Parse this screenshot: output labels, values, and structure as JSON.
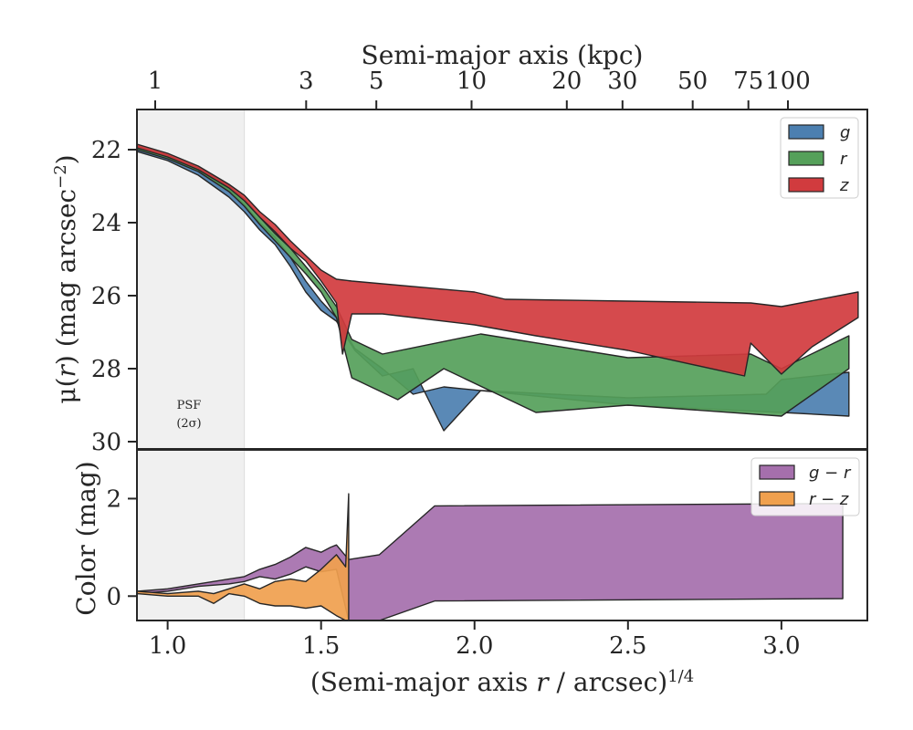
{
  "chart_data": [
    {
      "type": "area",
      "panel": "surface-brightness",
      "top_axis": {
        "label": "Semi-major axis (kpc)",
        "ticks": [
          1,
          3,
          5,
          10,
          20,
          30,
          50,
          75,
          100
        ],
        "tick_labels": [
          "1",
          "3",
          "5",
          "10",
          "20",
          "30",
          "50",
          "75",
          "100"
        ]
      },
      "ylabel": "μ(r) (mag arcsec⁻²)",
      "ylim": [
        30.2,
        20.9
      ],
      "yticks": [
        22,
        24,
        26,
        28,
        30
      ],
      "ytick_labels": [
        "22",
        "24",
        "26",
        "28",
        "30"
      ],
      "y_inverted": true,
      "xlim": [
        0.9,
        3.28
      ],
      "psf_region": {
        "x": [
          0.9,
          1.25
        ],
        "label": "PSF",
        "sublabel": "(2σ)"
      },
      "legend": {
        "placement": "top-right",
        "entries": [
          "g",
          "r",
          "z"
        ]
      },
      "series": [
        {
          "name": "g",
          "color": "#4c7fb0",
          "upper": [
            [
              0.9,
              21.95
            ],
            [
              1.0,
              22.2
            ],
            [
              1.1,
              22.55
            ],
            [
              1.2,
              23.1
            ],
            [
              1.25,
              23.5
            ],
            [
              1.3,
              24.0
            ],
            [
              1.35,
              24.4
            ],
            [
              1.4,
              24.95
            ],
            [
              1.45,
              25.6
            ],
            [
              1.5,
              26.15
            ],
            [
              1.55,
              26.6
            ],
            [
              1.61,
              27.45
            ],
            [
              1.7,
              28.0
            ],
            [
              1.8,
              28.7
            ],
            [
              1.9,
              28.5
            ],
            [
              2.5,
              29.0
            ],
            [
              3.0,
              29.2
            ],
            [
              3.22,
              29.3
            ]
          ],
          "lower": [
            [
              0.9,
              22.05
            ],
            [
              1.0,
              22.3
            ],
            [
              1.1,
              22.7
            ],
            [
              1.2,
              23.3
            ],
            [
              1.25,
              23.7
            ],
            [
              1.3,
              24.2
            ],
            [
              1.35,
              24.6
            ],
            [
              1.4,
              25.2
            ],
            [
              1.45,
              25.9
            ],
            [
              1.5,
              26.4
            ],
            [
              1.55,
              26.7
            ],
            [
              1.61,
              27.5
            ],
            [
              1.7,
              28.2
            ],
            [
              1.8,
              28.0
            ],
            [
              1.9,
              29.7
            ],
            [
              2.02,
              28.6
            ],
            [
              2.5,
              28.8
            ],
            [
              2.95,
              28.7
            ],
            [
              3.0,
              28.3
            ],
            [
              3.22,
              28.1
            ]
          ]
        },
        {
          "name": "r",
          "color": "#55a05a",
          "upper": [
            [
              0.9,
              21.9
            ],
            [
              1.0,
              22.15
            ],
            [
              1.1,
              22.5
            ],
            [
              1.2,
              23.0
            ],
            [
              1.25,
              23.35
            ],
            [
              1.3,
              23.85
            ],
            [
              1.35,
              24.3
            ],
            [
              1.4,
              24.7
            ],
            [
              1.45,
              25.2
            ],
            [
              1.5,
              25.7
            ],
            [
              1.55,
              26.3
            ],
            [
              1.6,
              27.2
            ],
            [
              1.7,
              27.6
            ],
            [
              2.02,
              27.05
            ],
            [
              2.5,
              27.7
            ],
            [
              2.9,
              27.6
            ],
            [
              3.0,
              28.0
            ],
            [
              3.22,
              27.1
            ]
          ],
          "lower": [
            [
              0.9,
              22.0
            ],
            [
              1.0,
              22.25
            ],
            [
              1.1,
              22.6
            ],
            [
              1.2,
              23.15
            ],
            [
              1.25,
              23.55
            ],
            [
              1.3,
              24.05
            ],
            [
              1.35,
              24.5
            ],
            [
              1.4,
              24.95
            ],
            [
              1.45,
              25.4
            ],
            [
              1.5,
              25.9
            ],
            [
              1.55,
              26.6
            ],
            [
              1.6,
              28.25
            ],
            [
              1.75,
              28.85
            ],
            [
              1.9,
              28.0
            ],
            [
              2.2,
              29.2
            ],
            [
              2.5,
              29.0
            ],
            [
              3.0,
              29.3
            ],
            [
              3.22,
              28.0
            ]
          ]
        },
        {
          "name": "z",
          "color": "#d13b3e",
          "upper": [
            [
              0.9,
              21.85
            ],
            [
              1.0,
              22.1
            ],
            [
              1.1,
              22.45
            ],
            [
              1.2,
              22.95
            ],
            [
              1.25,
              23.25
            ],
            [
              1.3,
              23.7
            ],
            [
              1.35,
              24.05
            ],
            [
              1.4,
              24.5
            ],
            [
              1.45,
              24.9
            ],
            [
              1.5,
              25.3
            ],
            [
              1.55,
              25.55
            ],
            [
              1.6,
              25.6
            ],
            [
              2.0,
              25.9
            ],
            [
              2.1,
              26.1
            ],
            [
              2.5,
              26.15
            ],
            [
              2.9,
              26.2
            ],
            [
              3.0,
              26.3
            ],
            [
              3.25,
              25.9
            ]
          ],
          "lower": [
            [
              0.9,
              21.95
            ],
            [
              1.0,
              22.2
            ],
            [
              1.1,
              22.55
            ],
            [
              1.2,
              23.05
            ],
            [
              1.25,
              23.4
            ],
            [
              1.3,
              23.85
            ],
            [
              1.35,
              24.25
            ],
            [
              1.4,
              24.7
            ],
            [
              1.45,
              25.05
            ],
            [
              1.5,
              25.6
            ],
            [
              1.55,
              26.2
            ],
            [
              1.57,
              27.6
            ],
            [
              1.6,
              26.5
            ],
            [
              1.7,
              26.5
            ],
            [
              2.0,
              26.8
            ],
            [
              2.2,
              27.1
            ],
            [
              2.5,
              27.5
            ],
            [
              2.88,
              28.2
            ],
            [
              2.9,
              27.3
            ],
            [
              3.0,
              28.15
            ],
            [
              3.1,
              27.4
            ],
            [
              3.25,
              26.6
            ]
          ]
        }
      ]
    },
    {
      "type": "area",
      "panel": "color",
      "xlabel": "(Semi-major axis r / arcsec)^1/4",
      "xlim": [
        0.9,
        3.28
      ],
      "xticks": [
        1.0,
        1.5,
        2.0,
        2.5,
        3.0
      ],
      "xtick_labels": [
        "1.0",
        "1.5",
        "2.0",
        "2.5",
        "3.0"
      ],
      "ylabel": "Color (mag)",
      "ylim": [
        -0.5,
        3.0
      ],
      "yticks": [
        0,
        2
      ],
      "ytick_labels": [
        "0",
        "2"
      ],
      "legend": {
        "placement": "top-right",
        "entries": [
          "g − r",
          "r − z"
        ]
      },
      "series": [
        {
          "name": "g − r",
          "color": "#a56fac",
          "upper": [
            [
              0.9,
              0.1
            ],
            [
              1.0,
              0.15
            ],
            [
              1.1,
              0.25
            ],
            [
              1.2,
              0.35
            ],
            [
              1.25,
              0.4
            ],
            [
              1.3,
              0.55
            ],
            [
              1.35,
              0.65
            ],
            [
              1.4,
              0.8
            ],
            [
              1.45,
              1.0
            ],
            [
              1.5,
              0.9
            ],
            [
              1.53,
              1.0
            ],
            [
              1.55,
              1.05
            ],
            [
              1.59,
              0.75
            ],
            [
              1.69,
              0.85
            ],
            [
              1.87,
              1.85
            ],
            [
              3.2,
              1.9
            ]
          ],
          "lower": [
            [
              0.9,
              0.05
            ],
            [
              1.0,
              0.1
            ],
            [
              1.1,
              0.2
            ],
            [
              1.2,
              0.25
            ],
            [
              1.25,
              0.3
            ],
            [
              1.3,
              0.4
            ],
            [
              1.35,
              0.35
            ],
            [
              1.4,
              0.45
            ],
            [
              1.45,
              0.6
            ],
            [
              1.5,
              0.5
            ],
            [
              1.55,
              0.55
            ],
            [
              1.59,
              -0.5
            ],
            [
              1.69,
              -0.5
            ],
            [
              1.87,
              -0.1
            ],
            [
              3.2,
              -0.05
            ]
          ]
        },
        {
          "name": "r − z",
          "color": "#f0a04e",
          "upper": [
            [
              0.9,
              0.1
            ],
            [
              1.0,
              0.05
            ],
            [
              1.1,
              0.1
            ],
            [
              1.15,
              0.05
            ],
            [
              1.2,
              0.15
            ],
            [
              1.25,
              0.25
            ],
            [
              1.3,
              0.15
            ],
            [
              1.35,
              0.3
            ],
            [
              1.4,
              0.35
            ],
            [
              1.45,
              0.3
            ],
            [
              1.5,
              0.55
            ],
            [
              1.55,
              0.85
            ],
            [
              1.58,
              0.6
            ],
            [
              1.59,
              2.1
            ]
          ],
          "lower": [
            [
              0.9,
              0.05
            ],
            [
              1.0,
              0.0
            ],
            [
              1.1,
              0.0
            ],
            [
              1.15,
              -0.15
            ],
            [
              1.2,
              0.05
            ],
            [
              1.25,
              0.0
            ],
            [
              1.3,
              -0.15
            ],
            [
              1.35,
              -0.2
            ],
            [
              1.4,
              -0.2
            ],
            [
              1.45,
              -0.25
            ],
            [
              1.5,
              -0.2
            ],
            [
              1.55,
              -0.4
            ],
            [
              1.58,
              -0.5
            ],
            [
              1.59,
              -0.5
            ]
          ]
        }
      ]
    }
  ]
}
